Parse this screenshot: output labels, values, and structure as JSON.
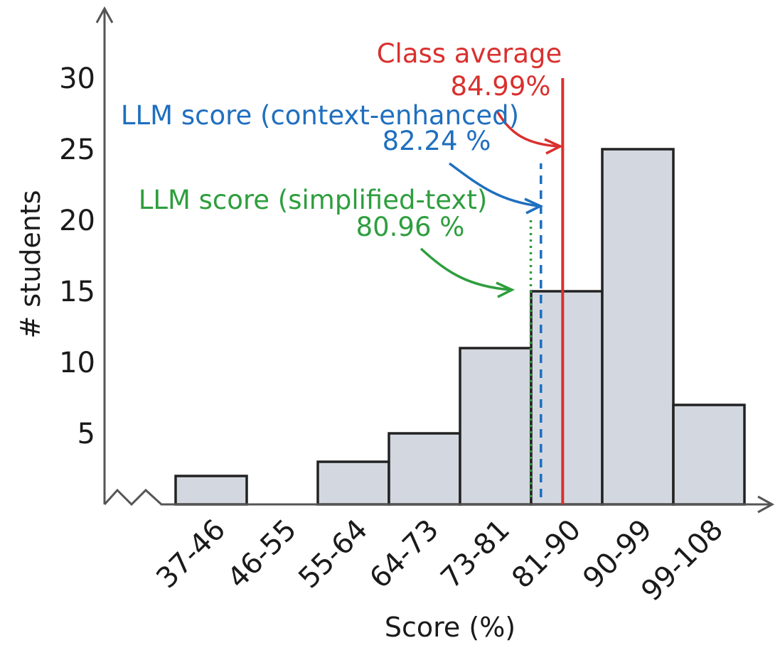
{
  "chart_data": {
    "type": "bar",
    "xlabel": "Score (%)",
    "ylabel": "# students",
    "categories": [
      "37-46",
      "46-55",
      "55-64",
      "64-73",
      "73-81",
      "81-90",
      "90-99",
      "99-108"
    ],
    "values": [
      2,
      0,
      3,
      5,
      11,
      15,
      25,
      7
    ],
    "y_ticks": [
      "5",
      "10",
      "15",
      "20",
      "25",
      "30"
    ],
    "ylim": [
      0,
      35
    ],
    "xlim": [
      37,
      108
    ],
    "grid": false,
    "axis_break": true,
    "reference_lines": [
      {
        "label": "Class average",
        "value_text": "84.99%",
        "x": 84.99,
        "y_top": 30,
        "style": "solid",
        "color": "#d9302e"
      },
      {
        "label": "LLM score (context-enhanced)",
        "value_text": "82.24 %",
        "x": 82.24,
        "y_top": 24,
        "style": "dashed",
        "color": "#1f6fbf"
      },
      {
        "label": "LLM score (simplified-text)",
        "value_text": "80.96 %",
        "x": 80.96,
        "y_top": 20,
        "style": "dotted",
        "color": "#2e9e3e"
      }
    ],
    "colors": {
      "bar_fill": "#d3d8e0",
      "bar_stroke": "#222222",
      "axis": "#555555"
    }
  }
}
